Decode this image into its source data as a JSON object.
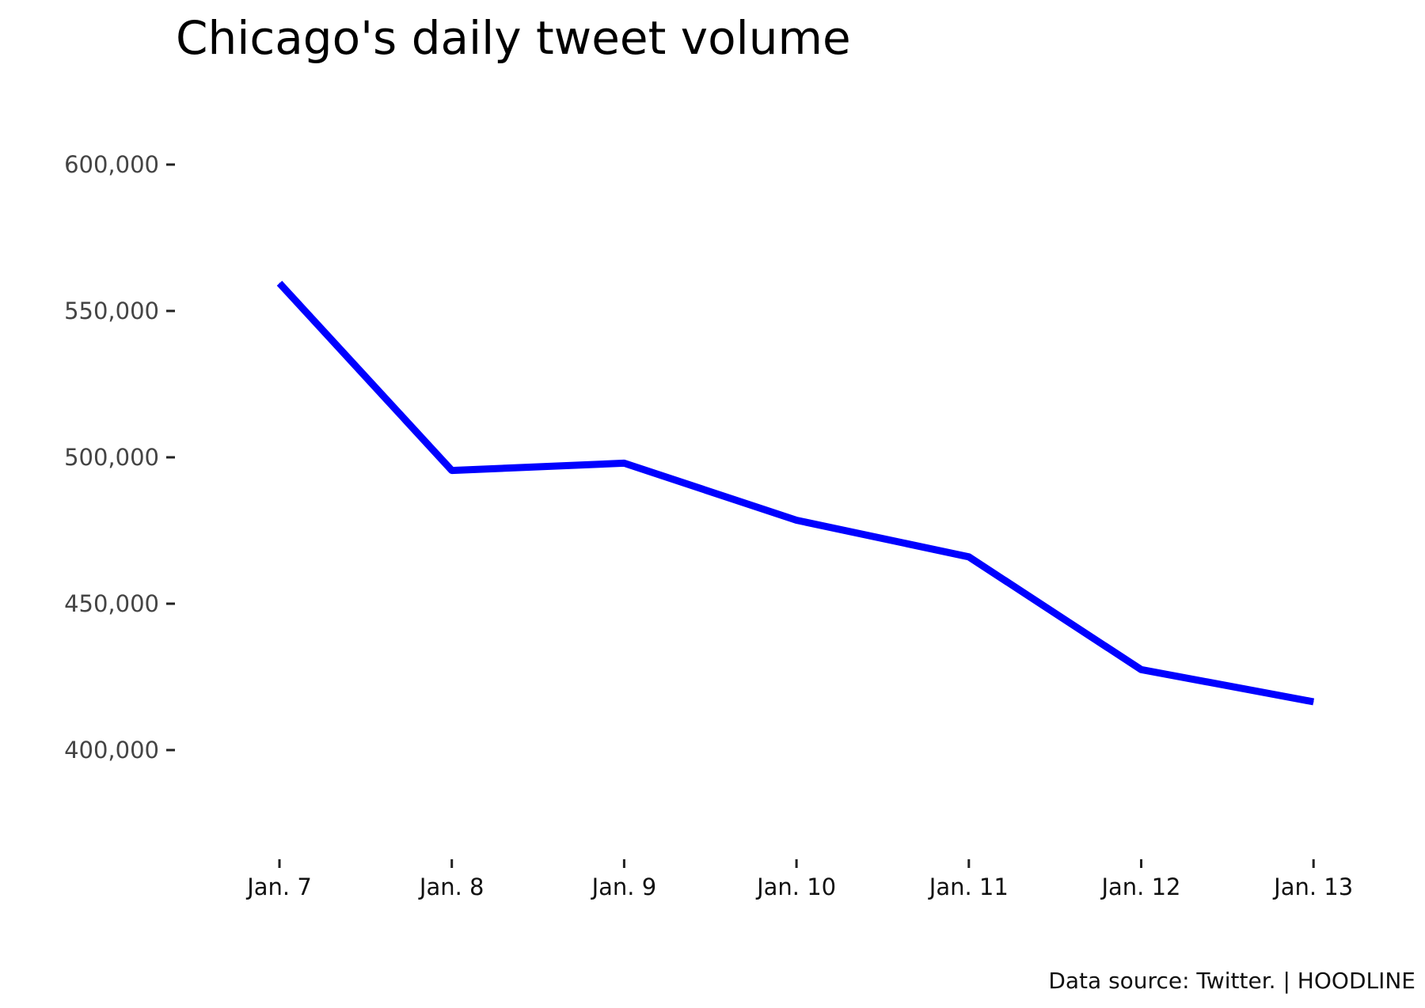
{
  "chart_data": {
    "type": "line",
    "title": "Chicago's daily tweet volume",
    "caption": "Data source: Twitter. | HOODLINE",
    "xlabel": "",
    "ylabel": "",
    "categories": [
      "Jan. 7",
      "Jan. 8",
      "Jan. 9",
      "Jan. 10",
      "Jan. 11",
      "Jan. 12",
      "Jan. 13"
    ],
    "series": [
      {
        "values": [
          559500,
          495500,
          498000,
          478500,
          466000,
          427500,
          416500
        ],
        "color": "#0000ff"
      }
    ],
    "y_ticks": [
      400000,
      450000,
      500000,
      550000,
      600000
    ],
    "y_tick_labels": [
      "400,000",
      "450,000",
      "500,000",
      "550,000",
      "600,000"
    ],
    "ylim": [
      365000,
      645000
    ],
    "grid": false,
    "legend": "none"
  }
}
